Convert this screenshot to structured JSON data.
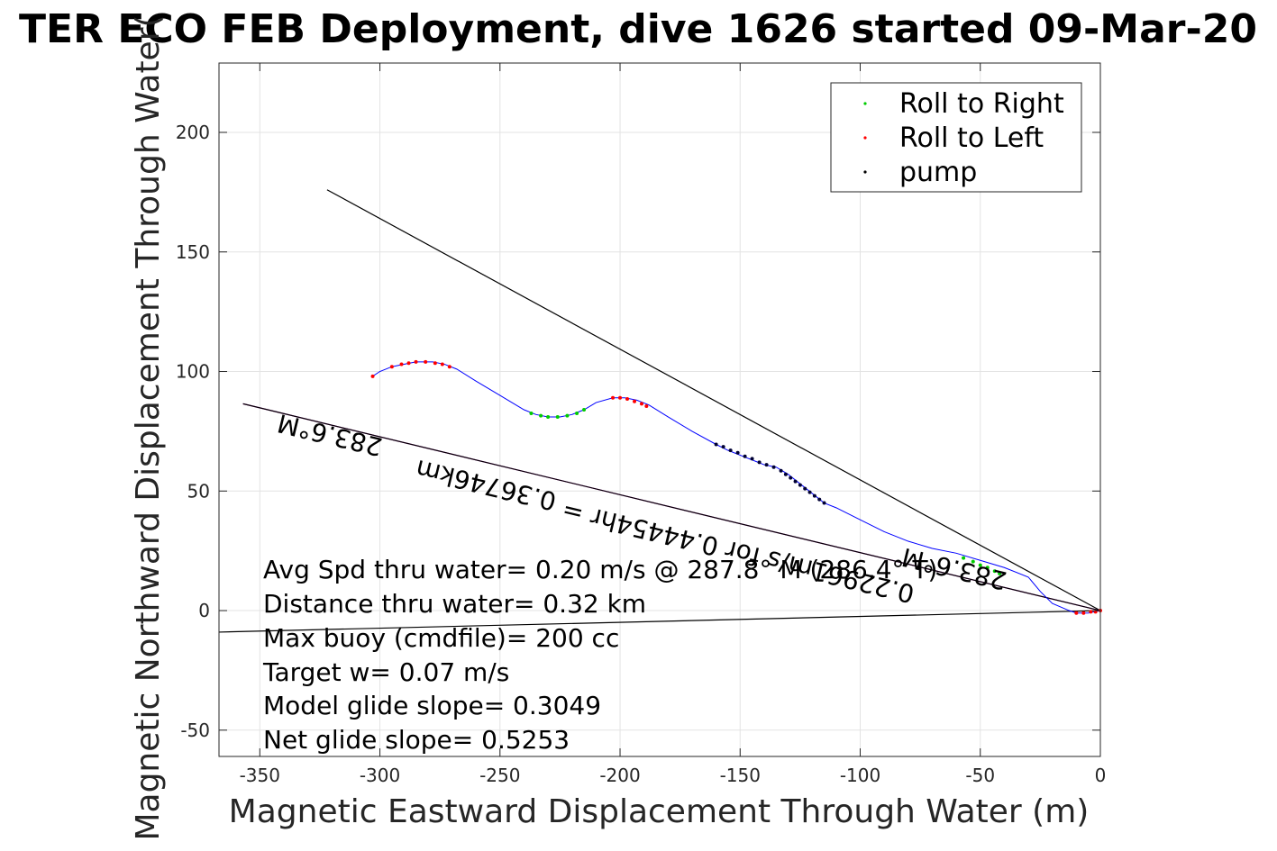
{
  "chart_data": {
    "type": "line",
    "title": "TER ECO FEB Deployment, dive 1626 started 09-Mar-20",
    "xlabel": "Magnetic Eastward Displacement Through Water (m)",
    "ylabel": "Magnetic Northward Displacement Through Water(",
    "xlim": [
      -367,
      0
    ],
    "ylim": [
      -61,
      229
    ],
    "xticks": [
      -350,
      -300,
      -250,
      -200,
      -150,
      -100,
      -50,
      0
    ],
    "yticks": [
      -50,
      0,
      50,
      100,
      150,
      200
    ],
    "grid": true,
    "colors": {
      "track": "#0000ff",
      "roll_right": "#00cc00",
      "roll_left": "#ff0000",
      "pump": "#000033",
      "magenta_line": "#cc00cc",
      "black_line": "#000000"
    },
    "legend": {
      "placement": "top-right",
      "entries": [
        {
          "label": "Roll to Right",
          "color": "#00cc00"
        },
        {
          "label": "Roll to Left",
          "color": "#ff0000"
        },
        {
          "label": "pump",
          "color": "#000000"
        }
      ]
    },
    "track": [
      [
        0,
        0
      ],
      [
        -5,
        -1
      ],
      [
        -10,
        -1
      ],
      [
        -13,
        0
      ],
      [
        -20,
        3
      ],
      [
        -25,
        8
      ],
      [
        -30,
        14
      ],
      [
        -40,
        18
      ],
      [
        -50,
        21
      ],
      [
        -60,
        24
      ],
      [
        -70,
        26
      ],
      [
        -80,
        29
      ],
      [
        -90,
        33
      ],
      [
        -100,
        38
      ],
      [
        -110,
        43
      ],
      [
        -115,
        45
      ],
      [
        -120,
        49
      ],
      [
        -125,
        53
      ],
      [
        -130,
        57
      ],
      [
        -135,
        60
      ],
      [
        -140,
        61
      ],
      [
        -145,
        63
      ],
      [
        -150,
        65
      ],
      [
        -155,
        67
      ],
      [
        -160,
        69.5
      ],
      [
        -170,
        75
      ],
      [
        -180,
        81
      ],
      [
        -188,
        86
      ],
      [
        -193,
        88
      ],
      [
        -198,
        89
      ],
      [
        -203,
        89
      ],
      [
        -210,
        87
      ],
      [
        -215,
        84
      ],
      [
        -220,
        82
      ],
      [
        -225,
        81
      ],
      [
        -230,
        81
      ],
      [
        -235,
        82
      ],
      [
        -240,
        84
      ],
      [
        -250,
        90
      ],
      [
        -260,
        96
      ],
      [
        -268,
        101
      ],
      [
        -273,
        103
      ],
      [
        -278,
        104
      ],
      [
        -285,
        104
      ],
      [
        -290,
        103
      ],
      [
        -295,
        102
      ],
      [
        -300,
        100
      ],
      [
        -303,
        98
      ]
    ],
    "roll_right_points": [
      [
        -237,
        82.5
      ],
      [
        -233,
        81.5
      ],
      [
        -230,
        81
      ],
      [
        -226,
        81
      ],
      [
        -222,
        81.5
      ],
      [
        -218,
        82.5
      ],
      [
        -215,
        84
      ],
      [
        -57,
        22
      ],
      [
        -53,
        20.5
      ],
      [
        -50,
        19
      ],
      [
        -47,
        18
      ],
      [
        -44,
        16.5
      ],
      [
        -42,
        15.5
      ]
    ],
    "roll_left_points": [
      [
        -303,
        98
      ],
      [
        -295,
        102
      ],
      [
        -291,
        103
      ],
      [
        -288,
        103.5
      ],
      [
        -285,
        104
      ],
      [
        -281,
        104
      ],
      [
        -277,
        103.5
      ],
      [
        -274,
        103
      ],
      [
        -271,
        102
      ],
      [
        -203,
        89
      ],
      [
        -200,
        89
      ],
      [
        -197,
        88.5
      ],
      [
        -194,
        87.5
      ],
      [
        -191,
        86.5
      ],
      [
        -189,
        85.5
      ],
      [
        -10,
        -1
      ],
      [
        -7,
        -1
      ],
      [
        -4,
        -0.5
      ],
      [
        -2,
        -0.5
      ],
      [
        0,
        0
      ]
    ],
    "pump_points": [
      [
        -160,
        69.5
      ],
      [
        -157,
        68.5
      ],
      [
        -154,
        67
      ],
      [
        -151,
        66
      ],
      [
        -148,
        64.5
      ],
      [
        -145,
        63.5
      ],
      [
        -142,
        62
      ],
      [
        -139,
        61
      ],
      [
        -136,
        60
      ],
      [
        -133,
        58.5
      ],
      [
        -131,
        57
      ],
      [
        -129,
        55.5
      ],
      [
        -127,
        54
      ],
      [
        -125,
        52.5
      ],
      [
        -123,
        51
      ],
      [
        -121,
        49.5
      ],
      [
        -119,
        48
      ],
      [
        -117,
        46.5
      ],
      [
        -115,
        45
      ]
    ],
    "lines": [
      {
        "color": "#000000",
        "from": [
          -322,
          176
        ],
        "to": [
          0,
          0
        ]
      },
      {
        "color": "#cc00cc",
        "from": [
          -357,
          86.5
        ],
        "to": [
          0,
          0
        ]
      },
      {
        "color": "#000000",
        "from": [
          -357,
          86.5
        ],
        "to": [
          0,
          0
        ]
      },
      {
        "color": "#000000",
        "from": [
          -367,
          -9
        ],
        "to": [
          0,
          0
        ]
      }
    ],
    "stats": [
      "Avg Spd thru water=  0.20 m/s @ 287.8° M (286.4° T)",
      "Distance thru water=  0.32 km",
      "Max buoy (cmdfile)= 200 cc",
      "Target w= 0.07 m/s",
      "Model glide slope= 0.3049",
      "Net glide slope= 0.5253"
    ],
    "annotations": [
      {
        "text": "283.6°M",
        "x": -320,
        "y": 77
      },
      {
        "text": "0.36746km",
        "x": -255,
        "y": 56
      },
      {
        "text": "0.22961m/s for 0.44454hr =",
        "x": -150,
        "y": 28
      },
      {
        "text": "283.6°M",
        "x": -60,
        "y": 21
      }
    ]
  }
}
